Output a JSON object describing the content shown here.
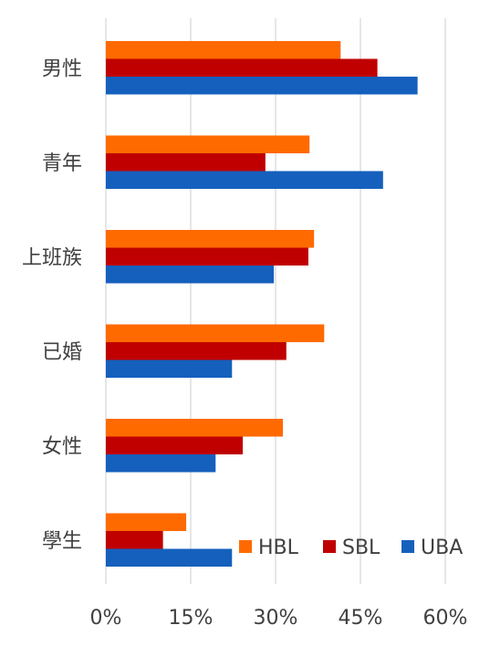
{
  "chart_data": {
    "type": "bar",
    "orientation": "horizontal",
    "title": "",
    "xlabel": "",
    "ylabel": "",
    "categories": [
      "男性",
      "青年",
      "上班族",
      "已婚",
      "女性",
      "學生"
    ],
    "series": [
      {
        "name": "HBL",
        "color": "#FF6A00",
        "values": [
          41.5,
          36.0,
          36.8,
          38.6,
          31.3,
          14.2
        ]
      },
      {
        "name": "SBL",
        "color": "#C00000",
        "values": [
          48.0,
          28.2,
          35.8,
          31.9,
          24.2,
          10.1
        ]
      },
      {
        "name": "UBA",
        "color": "#1560BD",
        "values": [
          55.1,
          49.0,
          29.7,
          22.3,
          19.4,
          22.3
        ]
      }
    ],
    "xlim": [
      0,
      60
    ],
    "x_ticks": [
      "0%",
      "15%",
      "30%",
      "45%",
      "60%"
    ],
    "grid": true,
    "legend_position": "bottom-right"
  }
}
